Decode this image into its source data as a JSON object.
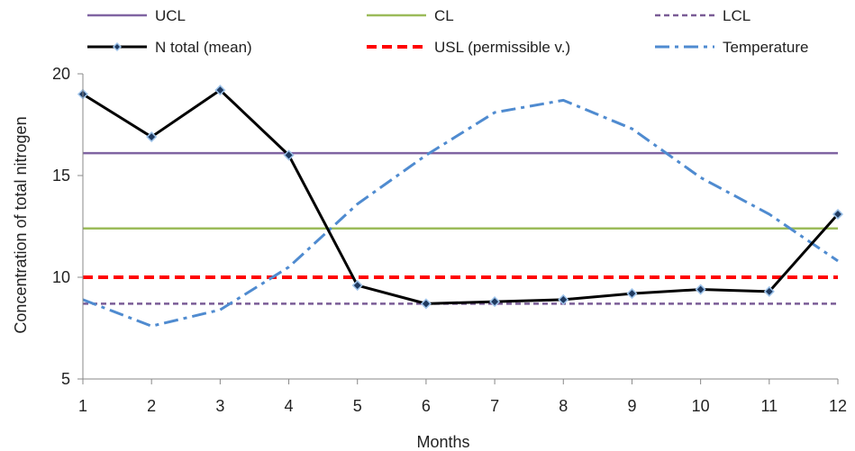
{
  "chart_data": {
    "type": "line",
    "title": "",
    "xlabel": "Months",
    "ylabel": "Concentration of total nitrogen",
    "x": [
      1,
      2,
      3,
      4,
      5,
      6,
      7,
      8,
      9,
      10,
      11,
      12
    ],
    "xlim": [
      1,
      12
    ],
    "ylim": [
      5,
      20
    ],
    "yticks": [
      5,
      10,
      15,
      20
    ],
    "grid": false,
    "legend_position": "top",
    "series": [
      {
        "name": "UCL",
        "color": "#8064a2",
        "style": "solid",
        "markers": false,
        "values": [
          16.1,
          16.1,
          16.1,
          16.1,
          16.1,
          16.1,
          16.1,
          16.1,
          16.1,
          16.1,
          16.1,
          16.1
        ]
      },
      {
        "name": "CL",
        "color": "#9bbb59",
        "style": "solid",
        "markers": false,
        "values": [
          12.4,
          12.4,
          12.4,
          12.4,
          12.4,
          12.4,
          12.4,
          12.4,
          12.4,
          12.4,
          12.4,
          12.4
        ]
      },
      {
        "name": "LCL",
        "color": "#7a5c96",
        "style": "dash",
        "markers": false,
        "values": [
          8.7,
          8.7,
          8.7,
          8.7,
          8.7,
          8.7,
          8.7,
          8.7,
          8.7,
          8.7,
          8.7,
          8.7
        ]
      },
      {
        "name": "N total (mean)",
        "color": "#000000",
        "style": "solid",
        "markers": true,
        "values": [
          19.0,
          16.9,
          19.2,
          16.0,
          9.6,
          8.7,
          8.8,
          8.9,
          9.2,
          9.4,
          9.3,
          13.1
        ]
      },
      {
        "name": "USL (permissible v.)",
        "color": "#ff0000",
        "style": "dashbold",
        "markers": false,
        "values": [
          10.0,
          10.0,
          10.0,
          10.0,
          10.0,
          10.0,
          10.0,
          10.0,
          10.0,
          10.0,
          10.0,
          10.0
        ]
      },
      {
        "name": "Temperature",
        "color": "#4f8bd0",
        "style": "dashdot",
        "markers": false,
        "values": [
          8.9,
          7.6,
          8.4,
          10.5,
          13.6,
          16.0,
          18.1,
          18.7,
          17.3,
          14.9,
          13.1,
          10.8
        ]
      }
    ]
  }
}
